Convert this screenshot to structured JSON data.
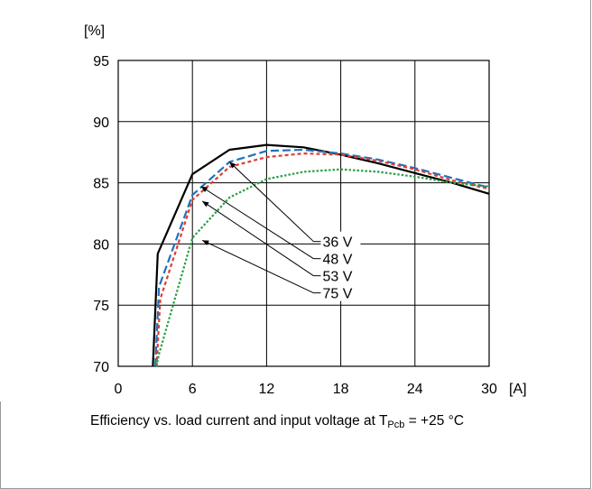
{
  "chart_data": {
    "type": "line",
    "title": "",
    "xlabel": "",
    "ylabel": "",
    "x_unit": "[A]",
    "y_unit": "[%]",
    "xlim": [
      0,
      30
    ],
    "ylim": [
      70,
      95
    ],
    "x_ticks": [
      "0",
      "6",
      "12",
      "18",
      "24",
      "30"
    ],
    "y_ticks": [
      "70",
      "75",
      "80",
      "85",
      "90",
      "95"
    ],
    "grid": true,
    "legend": "annotation labels with leader lines",
    "series": [
      {
        "name": "36 V",
        "color": "#000000",
        "style": "solid",
        "points": [
          [
            2.8,
            70
          ],
          [
            3.2,
            79.2
          ],
          [
            6,
            85.7
          ],
          [
            9,
            87.7
          ],
          [
            12,
            88.1
          ],
          [
            15,
            87.9
          ],
          [
            18,
            87.3
          ],
          [
            21,
            86.6
          ],
          [
            24,
            85.8
          ],
          [
            27,
            85
          ],
          [
            30,
            84.1
          ]
        ]
      },
      {
        "name": "48 V",
        "color": "#1e73be",
        "style": "long-dash",
        "points": [
          [
            3,
            70
          ],
          [
            3.3,
            76.5
          ],
          [
            6,
            84
          ],
          [
            9,
            86.7
          ],
          [
            12,
            87.6
          ],
          [
            15,
            87.7
          ],
          [
            18,
            87.4
          ],
          [
            21,
            86.9
          ],
          [
            24,
            86.2
          ],
          [
            27,
            85.4
          ],
          [
            30,
            84.6
          ]
        ]
      },
      {
        "name": "53 V",
        "color": "#e03c31",
        "style": "short-dash",
        "points": [
          [
            3.1,
            70
          ],
          [
            3.4,
            75.5
          ],
          [
            6,
            83.6
          ],
          [
            9,
            86.3
          ],
          [
            12,
            87.1
          ],
          [
            15,
            87.4
          ],
          [
            18,
            87.3
          ],
          [
            21,
            86.8
          ],
          [
            24,
            86.1
          ],
          [
            27,
            85.2
          ],
          [
            30,
            84.5
          ]
        ]
      },
      {
        "name": "75 V",
        "color": "#2ca048",
        "style": "dotted",
        "points": [
          [
            3.1,
            70
          ],
          [
            3.3,
            71
          ],
          [
            6,
            80.5
          ],
          [
            9,
            83.8
          ],
          [
            12,
            85.3
          ],
          [
            15,
            85.9
          ],
          [
            18,
            86.1
          ],
          [
            21,
            85.9
          ],
          [
            24,
            85.5
          ],
          [
            27,
            85
          ],
          [
            30,
            84.7
          ]
        ]
      }
    ],
    "annotations": [
      {
        "text": "36 V",
        "from": [
          9,
          86.7
        ],
        "to": [
          15.8,
          80.2
        ]
      },
      {
        "text": "48 V",
        "from": [
          6.7,
          84.7
        ],
        "to": [
          15.8,
          78.8
        ]
      },
      {
        "text": "53 V",
        "from": [
          6.8,
          83.5
        ],
        "to": [
          15.8,
          77.4
        ]
      },
      {
        "text": "75 V",
        "from": [
          6.8,
          80.3
        ],
        "to": [
          15.8,
          76.0
        ]
      }
    ]
  },
  "caption": {
    "prefix": "Efficiency vs. load current and input voltage at T",
    "sub": "Pcb",
    "suffix": " = +25 °C"
  }
}
